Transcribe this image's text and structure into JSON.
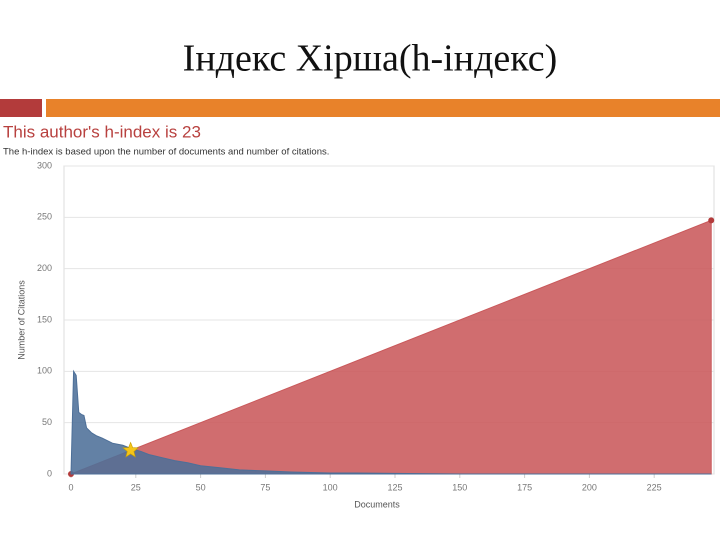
{
  "slide_title": "Індекс Хірша(h-індекс)",
  "chart_data": {
    "type": "area",
    "title": "This author's h-index is 23",
    "subtitle": "The h-index is based upon the number of documents and number of citations.",
    "x_label": "Documents",
    "y_label": "Number of Citations",
    "xlim": [
      0,
      250
    ],
    "ylim": [
      0,
      300
    ],
    "xticks": [
      0,
      25,
      50,
      75,
      100,
      125,
      150,
      175,
      200,
      225
    ],
    "yticks": [
      0,
      50,
      100,
      150,
      200,
      250,
      300
    ],
    "grid": true,
    "series": [
      {
        "color": "#c9595b",
        "markers": true,
        "x": [
          0,
          247
        ],
        "values": [
          0,
          247
        ]
      },
      {
        "color": "#4d6f98",
        "markers": false,
        "x": [
          0,
          1,
          2,
          3,
          4,
          5,
          6,
          8,
          10,
          12,
          16,
          20,
          23,
          27,
          30,
          35,
          40,
          45,
          50,
          58,
          65,
          75,
          85,
          100,
          110,
          150,
          200,
          247
        ],
        "values": [
          0,
          100,
          96,
          60,
          58,
          57,
          45,
          40,
          37,
          35,
          30,
          28,
          25,
          22,
          19,
          16,
          13,
          11,
          8,
          6,
          4,
          3,
          2,
          1,
          1,
          0,
          0,
          0
        ]
      }
    ],
    "h_point": {
      "x": 23,
      "y": 23,
      "color": "#f5c518"
    }
  }
}
